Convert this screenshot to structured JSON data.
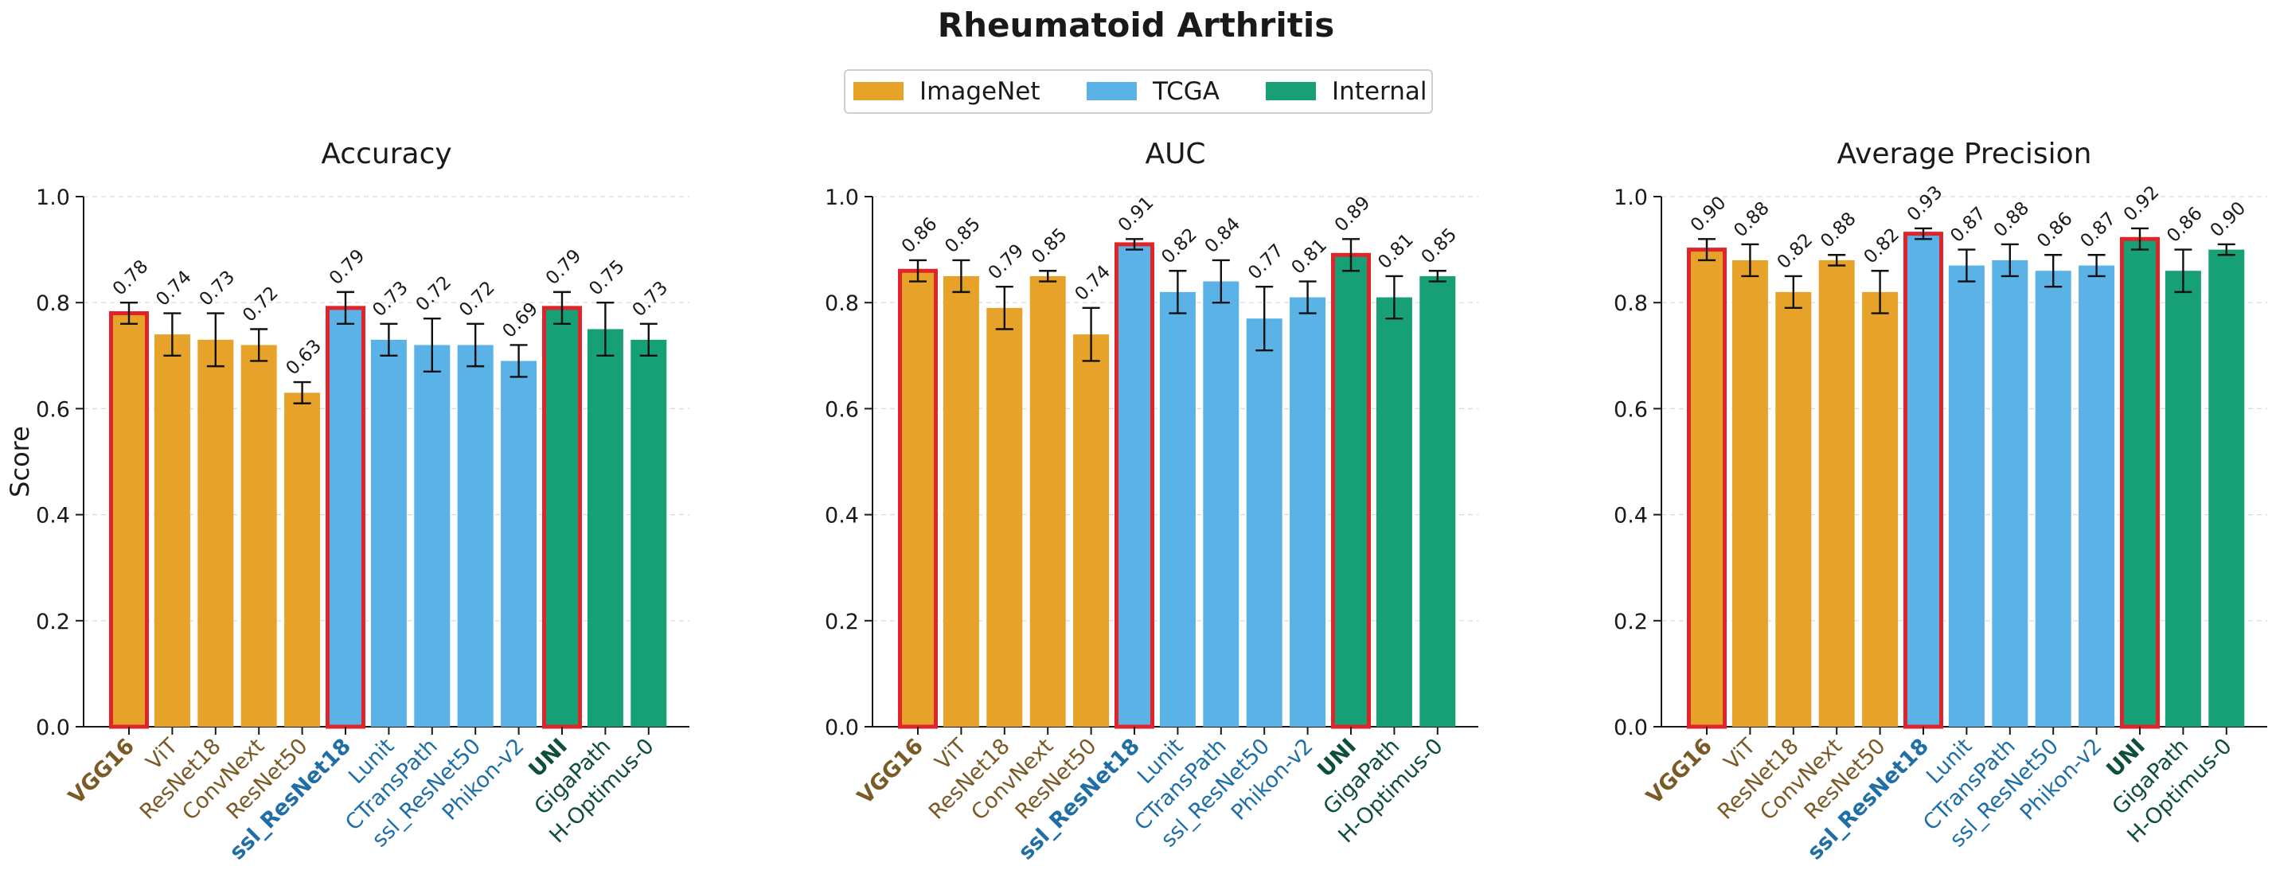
{
  "title": "Rheumatoid Arthritis",
  "legend": {
    "placement": "top-center",
    "entries": [
      {
        "name": "ImageNet",
        "color": "#E6A229"
      },
      {
        "name": "TCGA",
        "color": "#5AB2E6"
      },
      {
        "name": "Internal",
        "color": "#17A076"
      }
    ]
  },
  "colors": {
    "ImageNet": "#E6A229",
    "TCGA": "#5AB2E6",
    "Internal": "#17A076",
    "highlight_edge": "#E0252A",
    "label_ImageNet": "#7A5A26",
    "label_TCGA": "#1F6FA6",
    "label_Internal": "#0F4F38"
  },
  "chart_data": [
    {
      "type": "bar",
      "title": "Accuracy",
      "ylabel": "Score",
      "ylim": [
        0,
        1.0
      ],
      "yticks": [
        "0.0",
        "0.2",
        "0.4",
        "0.6",
        "0.8",
        "1.0"
      ],
      "grid": true,
      "categories": [
        "VGG16",
        "ViT",
        "ResNet18",
        "ConvNext",
        "ResNet50",
        "ssl_ResNet18",
        "Lunit",
        "CTransPath",
        "ssl_ResNet50",
        "Phikon-v2",
        "UNI",
        "GigaPath",
        "H-Optimus-0"
      ],
      "groups": [
        "ImageNet",
        "ImageNet",
        "ImageNet",
        "ImageNet",
        "ImageNet",
        "TCGA",
        "TCGA",
        "TCGA",
        "TCGA",
        "TCGA",
        "Internal",
        "Internal",
        "Internal"
      ],
      "highlighted": [
        "VGG16",
        "ssl_ResNet18",
        "UNI"
      ],
      "values": [
        0.78,
        0.74,
        0.73,
        0.72,
        0.63,
        0.79,
        0.73,
        0.72,
        0.72,
        0.69,
        0.79,
        0.75,
        0.73
      ],
      "errors": [
        0.02,
        0.04,
        0.05,
        0.03,
        0.02,
        0.03,
        0.03,
        0.05,
        0.04,
        0.03,
        0.03,
        0.05,
        0.03
      ],
      "data_labels": [
        "0.78",
        "0.74",
        "0.73",
        "0.72",
        "0.63",
        "0.79",
        "0.73",
        "0.72",
        "0.72",
        "0.69",
        "0.79",
        "0.75",
        "0.73"
      ]
    },
    {
      "type": "bar",
      "title": "AUC",
      "ylabel": "",
      "ylim": [
        0,
        1.0
      ],
      "yticks": [
        "0.0",
        "0.2",
        "0.4",
        "0.6",
        "0.8",
        "1.0"
      ],
      "grid": true,
      "categories": [
        "VGG16",
        "ViT",
        "ResNet18",
        "ConvNext",
        "ResNet50",
        "ssl_ResNet18",
        "Lunit",
        "CTransPath",
        "ssl_ResNet50",
        "Phikon-v2",
        "UNI",
        "GigaPath",
        "H-Optimus-0"
      ],
      "groups": [
        "ImageNet",
        "ImageNet",
        "ImageNet",
        "ImageNet",
        "ImageNet",
        "TCGA",
        "TCGA",
        "TCGA",
        "TCGA",
        "TCGA",
        "Internal",
        "Internal",
        "Internal"
      ],
      "highlighted": [
        "VGG16",
        "ssl_ResNet18",
        "UNI"
      ],
      "values": [
        0.86,
        0.85,
        0.79,
        0.85,
        0.74,
        0.91,
        0.82,
        0.84,
        0.77,
        0.81,
        0.89,
        0.81,
        0.85
      ],
      "errors": [
        0.02,
        0.03,
        0.04,
        0.01,
        0.05,
        0.01,
        0.04,
        0.04,
        0.06,
        0.03,
        0.03,
        0.04,
        0.01
      ],
      "data_labels": [
        "0.86",
        "0.85",
        "0.79",
        "0.85",
        "0.74",
        "0.91",
        "0.82",
        "0.84",
        "0.77",
        "0.81",
        "0.89",
        "0.81",
        "0.85"
      ]
    },
    {
      "type": "bar",
      "title": "Average Precision",
      "ylabel": "",
      "ylim": [
        0,
        1.0
      ],
      "yticks": [
        "0.0",
        "0.2",
        "0.4",
        "0.6",
        "0.8",
        "1.0"
      ],
      "grid": true,
      "categories": [
        "VGG16",
        "ViT",
        "ResNet18",
        "ConvNext",
        "ResNet50",
        "ssl_ResNet18",
        "Lunit",
        "CTransPath",
        "ssl_ResNet50",
        "Phikon-v2",
        "UNI",
        "GigaPath",
        "H-Optimus-0"
      ],
      "groups": [
        "ImageNet",
        "ImageNet",
        "ImageNet",
        "ImageNet",
        "ImageNet",
        "TCGA",
        "TCGA",
        "TCGA",
        "TCGA",
        "TCGA",
        "Internal",
        "Internal",
        "Internal"
      ],
      "highlighted": [
        "VGG16",
        "ssl_ResNet18",
        "UNI"
      ],
      "values": [
        0.9,
        0.88,
        0.82,
        0.88,
        0.82,
        0.93,
        0.87,
        0.88,
        0.86,
        0.87,
        0.92,
        0.86,
        0.9
      ],
      "errors": [
        0.02,
        0.03,
        0.03,
        0.01,
        0.04,
        0.01,
        0.03,
        0.03,
        0.03,
        0.02,
        0.02,
        0.04,
        0.01
      ],
      "data_labels": [
        "0.90",
        "0.88",
        "0.82",
        "0.88",
        "0.82",
        "0.93",
        "0.87",
        "0.88",
        "0.86",
        "0.87",
        "0.92",
        "0.86",
        "0.90"
      ]
    }
  ]
}
